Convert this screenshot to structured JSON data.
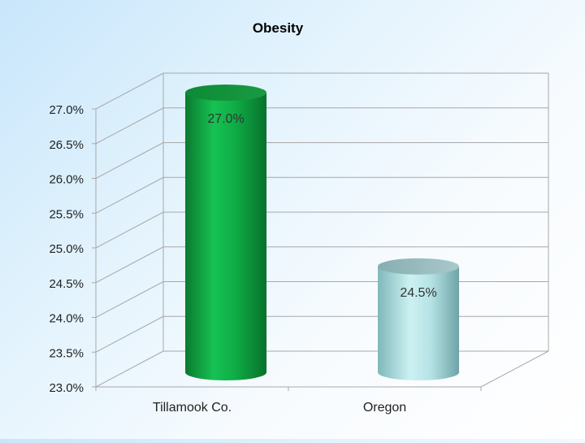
{
  "chart_data": {
    "type": "bar",
    "title": "Obesity",
    "categories": [
      "Tillamook Co.",
      "Oregon"
    ],
    "values": [
      27.0,
      24.5
    ],
    "data_labels": [
      "27.0%",
      "24.5%"
    ],
    "ylim": [
      23.0,
      27.0
    ],
    "yticks": [
      23.0,
      23.5,
      24.0,
      24.5,
      25.0,
      25.5,
      26.0,
      26.5,
      27.0
    ],
    "ytick_labels": [
      "23.0%",
      "23.5%",
      "24.0%",
      "24.5%",
      "25.0%",
      "25.5%",
      "26.0%",
      "26.5%",
      "27.0%"
    ],
    "xlabel": "",
    "ylabel": "",
    "grid": true,
    "style": "3d-cylinder",
    "colors": [
      "#1aa84a",
      "#b6e3e6"
    ]
  }
}
